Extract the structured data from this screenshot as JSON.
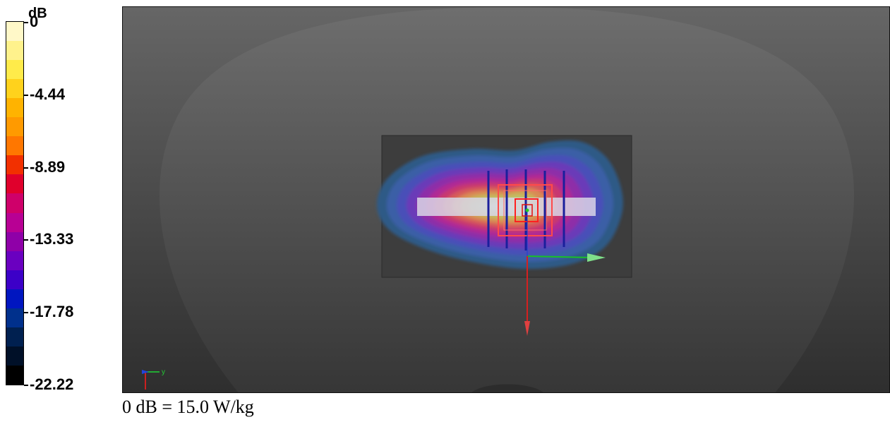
{
  "colorbar": {
    "unit": "dB",
    "ticks": [
      "0",
      "-4.44",
      "-8.89",
      "-13.33",
      "-17.78",
      "-22.22"
    ],
    "colors": [
      "#fff8c8",
      "#fff28c",
      "#ffeb4a",
      "#ffd21c",
      "#ffb300",
      "#ff9a00",
      "#ff7700",
      "#f23000",
      "#e0002c",
      "#cf006a",
      "#b80094",
      "#8f00a8",
      "#6a00c0",
      "#3c00c8",
      "#0016c0",
      "#00308c",
      "#002050",
      "#001028",
      "#000000"
    ]
  },
  "axes": {
    "y_label": "y"
  },
  "caption": "0 dB = 15.0 W/kg"
}
